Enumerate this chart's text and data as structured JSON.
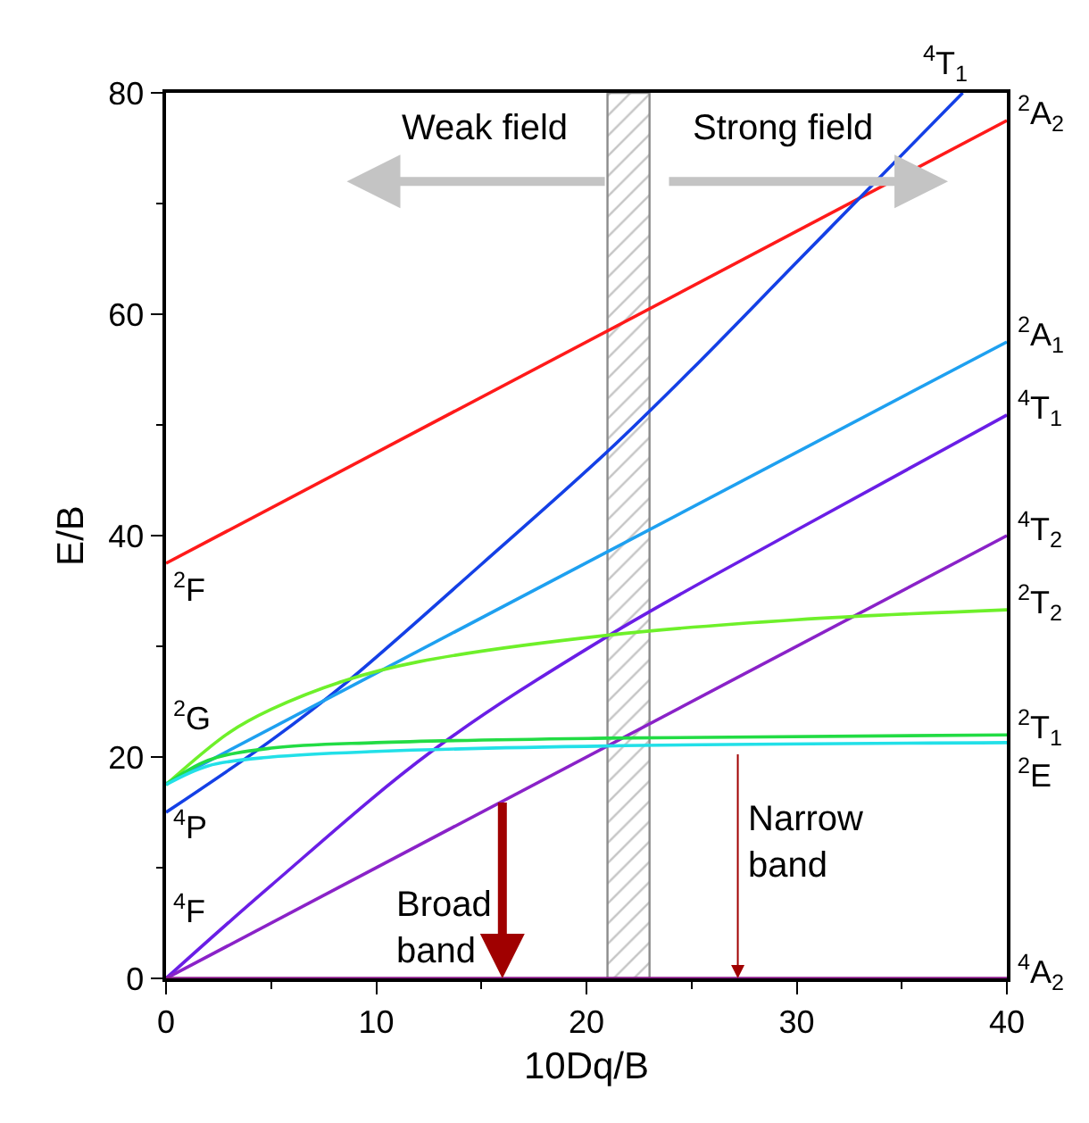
{
  "chart_data": {
    "type": "line",
    "xlabel": "10Dq/B",
    "ylabel": "E/B",
    "xlim": [
      0,
      40
    ],
    "ylim": [
      0,
      80
    ],
    "xticks": [
      0,
      10,
      20,
      30,
      40
    ],
    "yticks": [
      0,
      20,
      40,
      60,
      80
    ],
    "legend": false,
    "marker": "none",
    "line_style": "solid",
    "series": [
      {
        "name": "$^{2}$A$_{2}$",
        "color": "#ff1a1a",
        "x": [
          0,
          40
        ],
        "values": [
          37.5,
          77.5
        ]
      },
      {
        "name": "$^{4}$T$_{1}$",
        "color": "#1440e6",
        "x": [
          0,
          5,
          8.5,
          15,
          21,
          25,
          30,
          33.1,
          37.9
        ],
        "values": [
          15,
          21.5,
          26.6,
          37.4,
          47.6,
          55,
          64.7,
          70.7,
          80
        ]
      },
      {
        "name": "$^{2}$A$_{1}$",
        "color": "#1ea0f0",
        "x": [
          0,
          40
        ],
        "values": [
          17.6,
          57.5
        ]
      },
      {
        "name": "$^{4}$T$_{1}$",
        "color": "#6a1ee6",
        "x": [
          0,
          5,
          12.7,
          21,
          30,
          40
        ],
        "values": [
          0,
          8.4,
          20.6,
          30.9,
          40.5,
          50.9
        ]
      },
      {
        "name": "$^{4}$T$_{2}$",
        "color": "#8a22c8",
        "x": [
          0,
          40
        ],
        "values": [
          0,
          40
        ]
      },
      {
        "name": "$^{2}$T$_{2}$",
        "color": "#6ef02a",
        "x": [
          0,
          3,
          5,
          8.5,
          12,
          21,
          30,
          40
        ],
        "values": [
          17.5,
          22.2,
          24.3,
          26.9,
          28.6,
          31,
          32.4,
          33.3
        ]
      },
      {
        "name": "$^{2}$T$_{1}$",
        "color": "#22dc44",
        "x": [
          0,
          2,
          5,
          10,
          21,
          40
        ],
        "values": [
          17.5,
          19.7,
          20.8,
          21.3,
          21.7,
          22
        ]
      },
      {
        "name": "$^{2}$E",
        "color": "#22e0e8",
        "x": [
          0,
          2,
          5,
          10,
          21,
          40
        ],
        "values": [
          17.5,
          19.2,
          20,
          20.5,
          21,
          21.3
        ]
      },
      {
        "name": "$^{4}$A$_{2}$",
        "color": "#8a1a8a",
        "x": [
          0,
          40
        ],
        "values": [
          0,
          0
        ]
      }
    ],
    "bands": [
      {
        "axis": "x",
        "from": 21,
        "to": 23,
        "color": "#8c8c8c"
      }
    ],
    "annotations": [
      "Weak field",
      "Strong field",
      {
        "text": "Broad band",
        "x": 16,
        "y": 0
      },
      {
        "text": "Narrow band",
        "x": 27.2,
        "y": 0
      },
      "$^{2}$F",
      "$^{2}$G",
      "$^{4}$P",
      "$^{4}$F"
    ]
  }
}
